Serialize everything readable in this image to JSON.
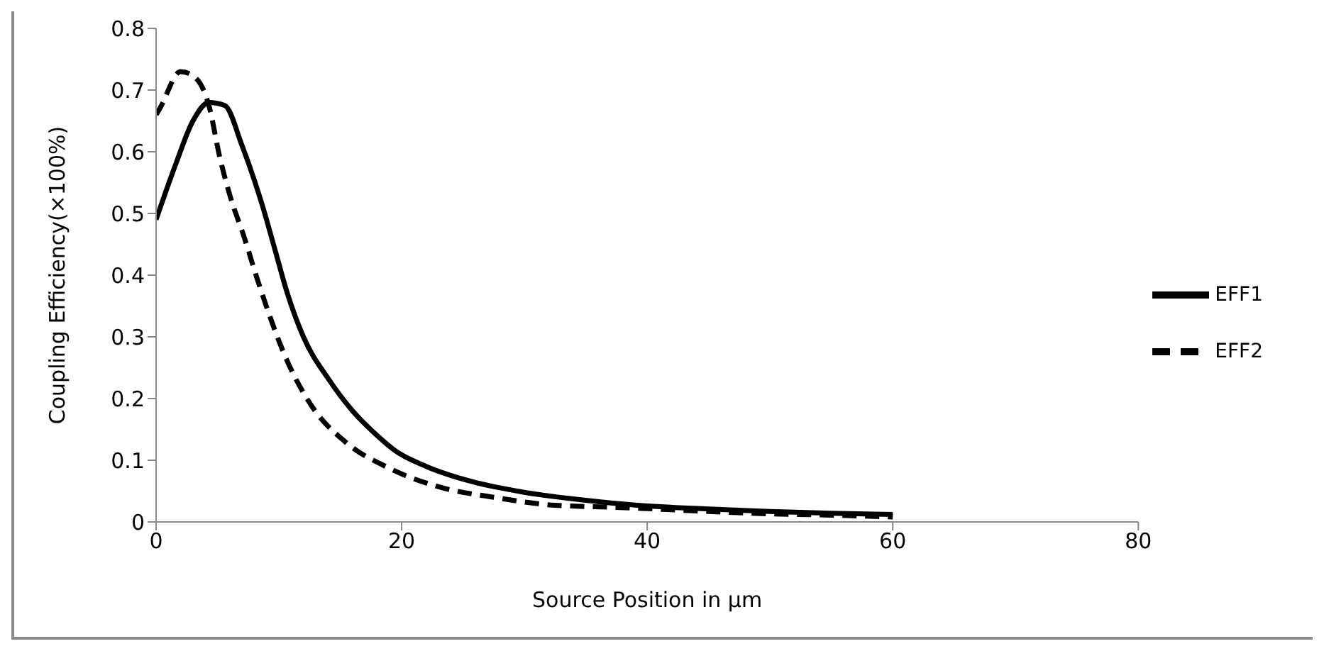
{
  "chart_data": {
    "type": "line",
    "xlabel": "Source Position in µm",
    "ylabel": "Coupling Efficiency(×100%)",
    "xlim": [
      0,
      80
    ],
    "xticks": [
      0,
      20,
      40,
      60,
      80
    ],
    "ylim": [
      0,
      0.8
    ],
    "yticks": [
      0,
      0.1,
      0.2,
      0.3,
      0.4,
      0.5,
      0.6,
      0.7,
      0.8
    ],
    "grid": false,
    "legend": "right",
    "marker": "none",
    "series": [
      {
        "name": "EFF1",
        "color": "#000000",
        "line_style": "solid",
        "x": [
          0,
          1.6,
          3,
          4.3,
          5.6,
          7,
          8.7,
          9.7,
          10.7,
          12,
          14.1,
          16,
          18,
          19.5,
          22,
          25.8,
          30,
          35,
          39.2,
          45,
          50,
          55,
          60
        ],
        "values": [
          0.49,
          0.58,
          0.65,
          0.68,
          0.675,
          0.61,
          0.51,
          0.44,
          0.37,
          0.3,
          0.23,
          0.18,
          0.14,
          0.115,
          0.09,
          0.065,
          0.048,
          0.035,
          0.027,
          0.021,
          0.017,
          0.014,
          0.012
        ]
      },
      {
        "name": "EFF2",
        "color": "#000000",
        "line_style": "dashed",
        "x": [
          0,
          0.3,
          2,
          3.2,
          4.3,
          5.2,
          6,
          7.2,
          8.3,
          10.7,
          12.6,
          15.4,
          19,
          23,
          27.5,
          32.5,
          37,
          45,
          50,
          55,
          60
        ],
        "values": [
          0.66,
          0.67,
          0.73,
          0.72,
          0.675,
          0.59,
          0.53,
          0.46,
          0.39,
          0.26,
          0.19,
          0.13,
          0.087,
          0.057,
          0.04,
          0.027,
          0.024,
          0.017,
          0.013,
          0.011,
          0.008
        ]
      }
    ]
  }
}
